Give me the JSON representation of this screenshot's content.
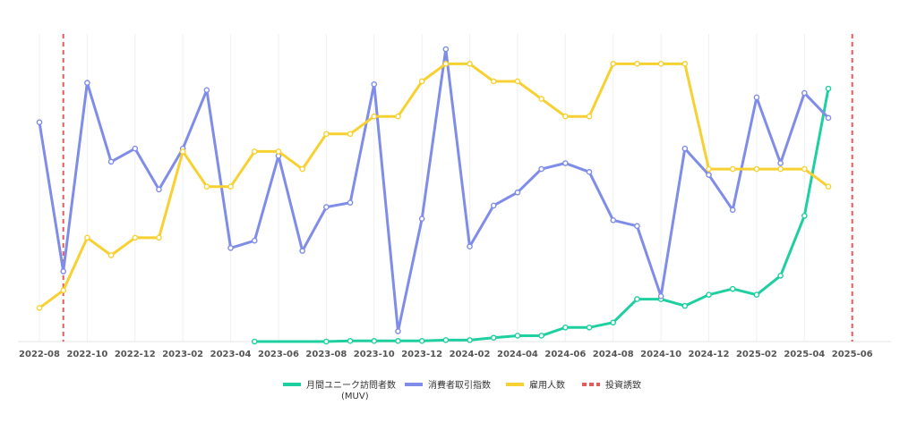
{
  "chart_data": {
    "type": "line",
    "x_ticks": [
      "2022-08",
      "2022-10",
      "2022-12",
      "2023-02",
      "2023-04",
      "2023-06",
      "2023-08",
      "2023-10",
      "2023-12",
      "2024-02",
      "2024-04",
      "2024-06",
      "2024-08",
      "2024-10",
      "2024-12",
      "2025-02",
      "2025-04",
      "2025-06"
    ],
    "x": [
      "2022-08",
      "2022-09",
      "2022-10",
      "2022-11",
      "2022-12",
      "2023-01",
      "2023-02",
      "2023-03",
      "2023-04",
      "2023-05",
      "2023-06",
      "2023-07",
      "2023-08",
      "2023-09",
      "2023-10",
      "2023-11",
      "2023-12",
      "2024-01",
      "2024-02",
      "2024-03",
      "2024-04",
      "2024-05",
      "2024-06",
      "2024-07",
      "2024-08",
      "2024-09",
      "2024-10",
      "2024-11",
      "2024-12",
      "2025-01",
      "2025-02",
      "2025-03",
      "2025-04",
      "2025-05"
    ],
    "ylim": [
      0,
      100
    ],
    "grid": {
      "vertical": true,
      "horizontal": false
    },
    "legend_position": "bottom",
    "series": [
      {
        "name": "月間ユニーク訪問者数\n(MUV)",
        "color": "#1ecfa0",
        "values": [
          null,
          null,
          null,
          null,
          null,
          null,
          null,
          null,
          null,
          0,
          null,
          null,
          0,
          0.2,
          0.2,
          0.2,
          0.2,
          0.5,
          0.5,
          1.3,
          2,
          2,
          4.8,
          4.8,
          6.5,
          14.5,
          14.5,
          12.2,
          16,
          18,
          16,
          22.5,
          43,
          86.5
        ]
      },
      {
        "name": "消費者取引指数",
        "color": "#7f8de8",
        "values": [
          75,
          24,
          88.5,
          61.5,
          66,
          52,
          66,
          86,
          32,
          34.5,
          63.5,
          31,
          46,
          47.5,
          88,
          3.5,
          42,
          100,
          32.5,
          46.5,
          51,
          59,
          61,
          58,
          41.5,
          39.5,
          15.5,
          66,
          57,
          45,
          83.5,
          61,
          85,
          76.5
        ]
      },
      {
        "name": "雇用人数",
        "color": "#f7d131",
        "values": [
          11.5,
          17.5,
          35.5,
          29.5,
          35.5,
          35.5,
          65,
          53,
          53,
          65,
          65,
          59,
          71,
          71,
          77,
          77,
          89,
          95,
          95,
          89,
          89,
          83,
          77,
          77,
          95,
          95,
          95,
          95,
          59,
          59,
          59,
          59,
          59,
          53
        ]
      },
      {
        "name": "投資誘致",
        "color": "#e35b5b",
        "dashed_vertical_at": [
          "2022-09",
          "2025-06"
        ]
      }
    ]
  }
}
